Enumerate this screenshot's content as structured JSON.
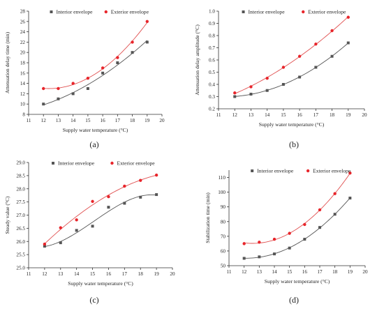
{
  "colors": {
    "interior": "#555555",
    "exterior": "#e8252b",
    "interior_line": "#555555",
    "exterior_line": "#e05050"
  },
  "chart_data": [
    {
      "type": "scatter",
      "panel_label": "(a)",
      "xlabel": "Supply water temperature (°C)",
      "ylabel": "Attenuation delay time (min)",
      "xlim": [
        11,
        20
      ],
      "ylim": [
        8,
        28
      ],
      "xticks": [
        11,
        12,
        13,
        14,
        15,
        16,
        17,
        18,
        19,
        20
      ],
      "yticks": [
        8,
        10,
        12,
        14,
        16,
        18,
        20,
        22,
        24,
        26,
        28
      ],
      "legend": "top",
      "fit_lines": true,
      "series": [
        {
          "name": "Interior envelope",
          "marker": "square",
          "x": [
            12,
            13,
            14,
            15,
            16,
            17,
            18,
            19
          ],
          "y": [
            10,
            11,
            12,
            13,
            16,
            18,
            20,
            22
          ]
        },
        {
          "name": "Exterior envelope",
          "marker": "circle",
          "x": [
            12,
            13,
            14,
            15,
            16,
            17,
            18,
            19
          ],
          "y": [
            13,
            13,
            14,
            15,
            17,
            19,
            22,
            26
          ]
        }
      ]
    },
    {
      "type": "scatter",
      "panel_label": "(b)",
      "xlabel": "Supply water temperature (°C)",
      "ylabel": "Attenuation delay amplitude (°C)",
      "xlim": [
        11,
        20
      ],
      "ylim": [
        0.2,
        1.0
      ],
      "xticks": [
        11,
        12,
        13,
        14,
        15,
        16,
        17,
        18,
        19,
        20
      ],
      "yticks": [
        0.2,
        0.3,
        0.4,
        0.5,
        0.6,
        0.7,
        0.8,
        0.9,
        1.0
      ],
      "legend": "top",
      "fit_lines": true,
      "series": [
        {
          "name": "Interior envelope",
          "marker": "square",
          "x": [
            12,
            13,
            14,
            15,
            16,
            17,
            18,
            19
          ],
          "y": [
            0.3,
            0.32,
            0.35,
            0.4,
            0.46,
            0.54,
            0.63,
            0.74
          ]
        },
        {
          "name": "Exterior envelope",
          "marker": "circle",
          "x": [
            12,
            13,
            14,
            15,
            16,
            17,
            18,
            19
          ],
          "y": [
            0.33,
            0.38,
            0.45,
            0.54,
            0.63,
            0.73,
            0.84,
            0.95
          ]
        }
      ]
    },
    {
      "type": "scatter",
      "panel_label": "(c)",
      "xlabel": "Supply water temperature (°C)",
      "ylabel": "Steady value (°C)",
      "xlim": [
        11,
        20
      ],
      "ylim": [
        25.0,
        29.0
      ],
      "xticks": [
        11,
        12,
        13,
        14,
        15,
        16,
        17,
        18,
        19,
        20
      ],
      "yticks": [
        25.0,
        25.5,
        26.0,
        26.5,
        27.0,
        27.5,
        28.0,
        28.5,
        29.0
      ],
      "legend": "top",
      "fit_lines": true,
      "series": [
        {
          "name": "Interior envelope",
          "marker": "square",
          "x": [
            12,
            13,
            14,
            15,
            16,
            17,
            18,
            19
          ],
          "y": [
            25.82,
            25.95,
            26.42,
            26.58,
            27.3,
            27.45,
            27.68,
            27.78
          ]
        },
        {
          "name": "Exterior envelope",
          "marker": "circle",
          "x": [
            12,
            13,
            14,
            15,
            16,
            17,
            18,
            19
          ],
          "y": [
            25.9,
            26.52,
            26.82,
            27.52,
            27.7,
            28.1,
            28.32,
            28.52
          ]
        }
      ]
    },
    {
      "type": "scatter",
      "panel_label": "(d)",
      "xlabel": "Supply water temperature (°C)",
      "ylabel": "Stabilization time (min)",
      "xlim": [
        11,
        20
      ],
      "ylim": [
        50,
        115
      ],
      "xticks": [
        11,
        12,
        13,
        14,
        15,
        16,
        17,
        18,
        19,
        20
      ],
      "yticks": [
        50,
        60,
        70,
        80,
        90,
        100,
        110
      ],
      "legend": "top",
      "fit_lines": true,
      "series": [
        {
          "name": "Interior envelope",
          "marker": "square",
          "x": [
            12,
            13,
            14,
            15,
            16,
            17,
            18,
            19
          ],
          "y": [
            55,
            56,
            58,
            62,
            68,
            76,
            85,
            96
          ]
        },
        {
          "name": "Exterior envelope",
          "marker": "circle",
          "x": [
            12,
            13,
            14,
            15,
            16,
            17,
            18,
            19
          ],
          "y": [
            65,
            66,
            68,
            72,
            78,
            88,
            99,
            113
          ]
        }
      ]
    }
  ]
}
